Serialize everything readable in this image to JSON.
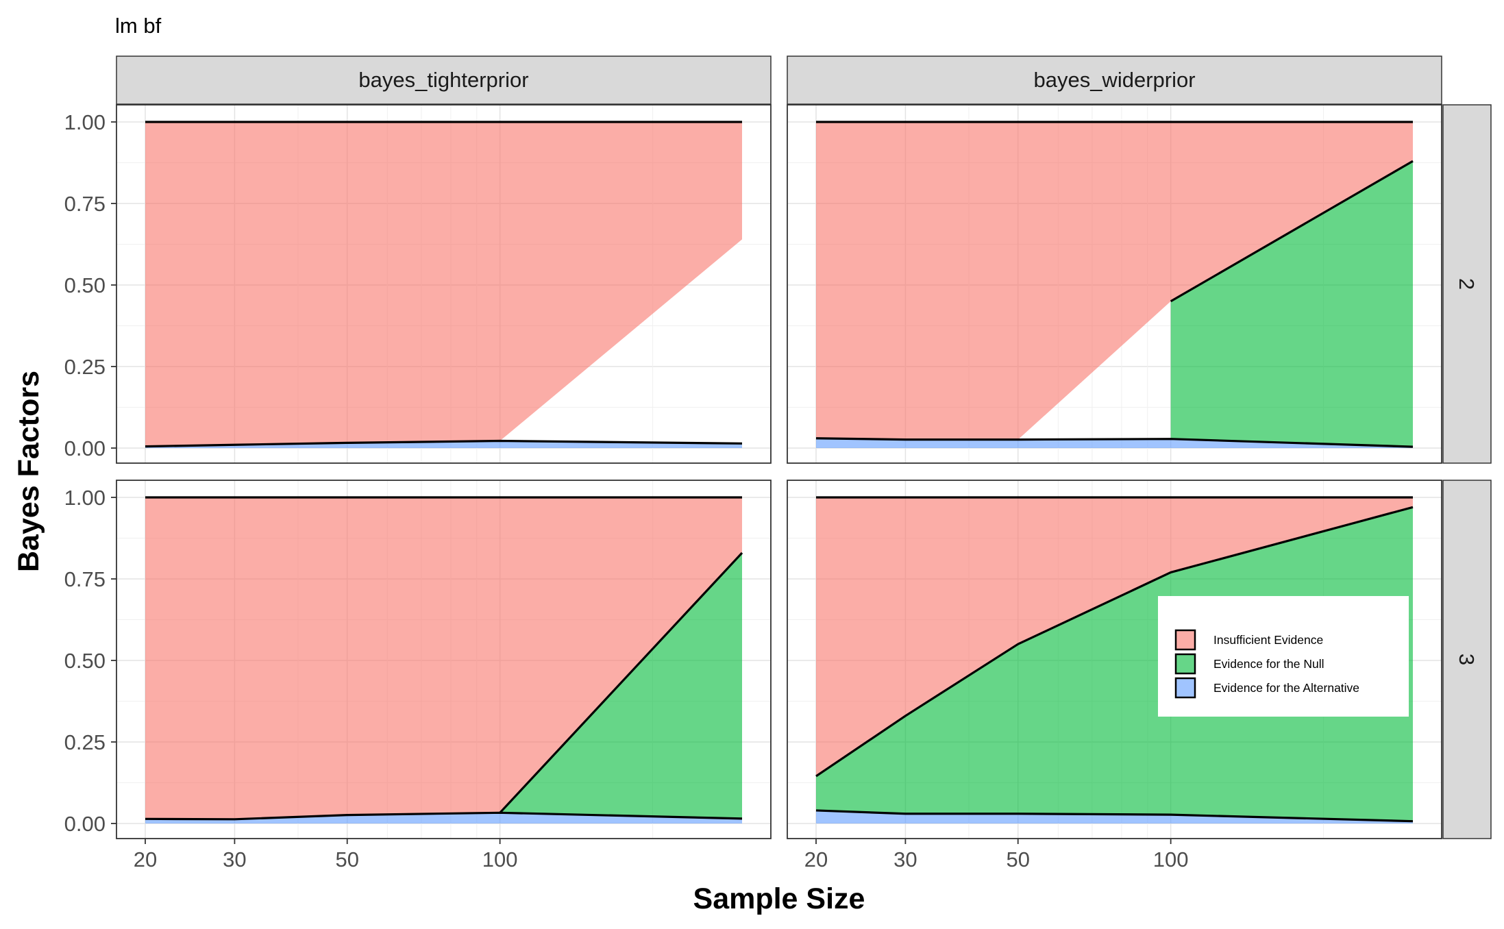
{
  "chart_data": {
    "type": "area",
    "title": "lm bf",
    "xlabel": "Sample Size",
    "ylabel": "Bayes Factors",
    "x_ticks": [
      20,
      30,
      50,
      100
    ],
    "y_ticks": [
      "0.00",
      "0.25",
      "0.50",
      "0.75",
      "1.00"
    ],
    "ylim": [
      0,
      1
    ],
    "x_scale": "log",
    "grid": true,
    "legend_position": "inside-right (panel bayes_widerprior / 3)",
    "legend": [
      {
        "name": "Insufficient Evidence",
        "color": "#F8766D"
      },
      {
        "name": "Evidence for the Null",
        "color": "#00BA38"
      },
      {
        "name": "Evidence for the Alternative",
        "color": "#619CFF"
      }
    ],
    "col_facets": [
      "bayes_tighterprior",
      "bayes_widerprior"
    ],
    "row_facets": [
      "2",
      "3"
    ],
    "panels": [
      {
        "col": "bayes_tighterprior",
        "row": "2",
        "x": [
          20,
          30,
          50,
          100,
          300
        ],
        "alternative": [
          0.005,
          0.01,
          0.016,
          0.022,
          0.014
        ],
        "null_upper": [
          null,
          null,
          null,
          null,
          null
        ],
        "insufficient_lower": [
          0.005,
          0.01,
          0.016,
          0.022,
          0.64
        ],
        "upper": [
          1,
          1,
          1,
          1,
          1
        ]
      },
      {
        "col": "bayes_widerprior",
        "row": "2",
        "x": [
          20,
          30,
          50,
          100,
          300
        ],
        "alternative": [
          0.03,
          0.026,
          0.026,
          0.028,
          0.004
        ],
        "null_upper": [
          null,
          null,
          null,
          0.45,
          0.88
        ],
        "insufficient_lower": [
          0.03,
          0.026,
          0.026,
          0.45,
          0.88
        ],
        "upper": [
          1,
          1,
          1,
          1,
          1
        ]
      },
      {
        "col": "bayes_tighterprior",
        "row": "3",
        "x": [
          20,
          30,
          50,
          100,
          300
        ],
        "alternative": [
          0.014,
          0.013,
          0.026,
          0.033,
          0.015
        ],
        "null_upper": [
          null,
          null,
          null,
          0.033,
          0.83
        ],
        "insufficient_lower": [
          0.014,
          0.013,
          0.026,
          0.033,
          0.83
        ],
        "upper": [
          1,
          1,
          1,
          1,
          1
        ]
      },
      {
        "col": "bayes_widerprior",
        "row": "3",
        "x": [
          20,
          30,
          50,
          100,
          300
        ],
        "alternative": [
          0.04,
          0.03,
          0.03,
          0.027,
          0.007
        ],
        "null_upper": [
          0.145,
          0.33,
          0.55,
          0.77,
          0.97
        ],
        "insufficient_lower": [
          0.145,
          0.33,
          0.55,
          0.77,
          0.97
        ],
        "upper": [
          1,
          1,
          1,
          1,
          1
        ]
      }
    ]
  }
}
